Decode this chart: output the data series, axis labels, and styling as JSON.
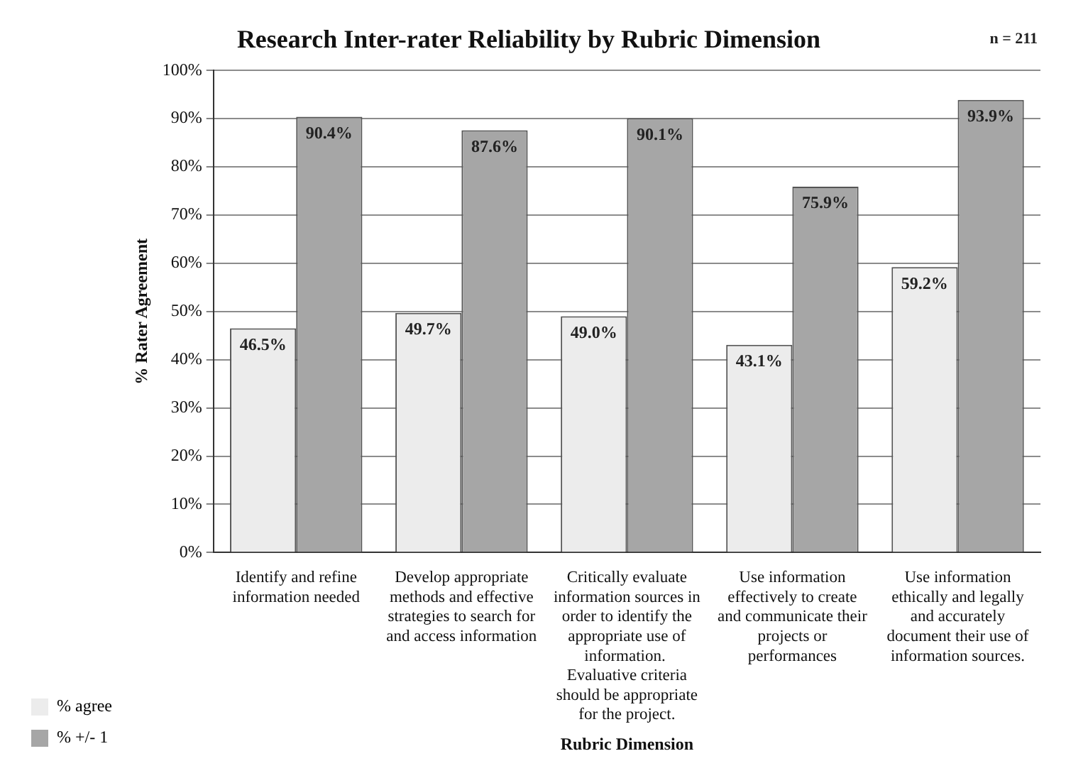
{
  "chart_data": {
    "type": "bar",
    "title": "Research Inter-rater Reliability by Rubric Dimension",
    "xlabel": "Rubric Dimension",
    "ylabel": "% Rater Agreement",
    "annotations": [
      "n = 211"
    ],
    "categories": [
      "Identify and refine information needed",
      "Develop appropriate methods and effective strategies to search for and access information",
      "Critically evaluate information sources in order to identify the appropriate use of information.  Evaluative criteria should be appropriate for the project.",
      "Use information effectively to create and communicate their projects or performances",
      "Use information ethically and legally and accurately document their use of information sources."
    ],
    "series": [
      {
        "name": "% agree",
        "color": "#ececec",
        "values": [
          46.5,
          49.7,
          49.0,
          43.1,
          59.2
        ],
        "value_labels": [
          "46.5%",
          "49.7%",
          "49.0%",
          "43.1%",
          "59.2%"
        ]
      },
      {
        "name": "% +/- 1",
        "color": "#a6a6a6",
        "values": [
          90.4,
          87.6,
          90.1,
          75.9,
          93.9
        ],
        "value_labels": [
          "90.4%",
          "87.6%",
          "90.1%",
          "75.9%",
          "93.9%"
        ]
      }
    ],
    "ylim": [
      0,
      100
    ],
    "yticks": [
      {
        "value": 0,
        "label": "0%"
      },
      {
        "value": 10,
        "label": "10%"
      },
      {
        "value": 20,
        "label": "20%"
      },
      {
        "value": 30,
        "label": "30%"
      },
      {
        "value": 40,
        "label": "40%"
      },
      {
        "value": 50,
        "label": "50%"
      },
      {
        "value": 60,
        "label": "60%"
      },
      {
        "value": 70,
        "label": "70%"
      },
      {
        "value": 80,
        "label": "80%"
      },
      {
        "value": 90,
        "label": "90%"
      },
      {
        "value": 100,
        "label": "100%"
      }
    ],
    "grid": "y",
    "legend": "bottom left"
  }
}
